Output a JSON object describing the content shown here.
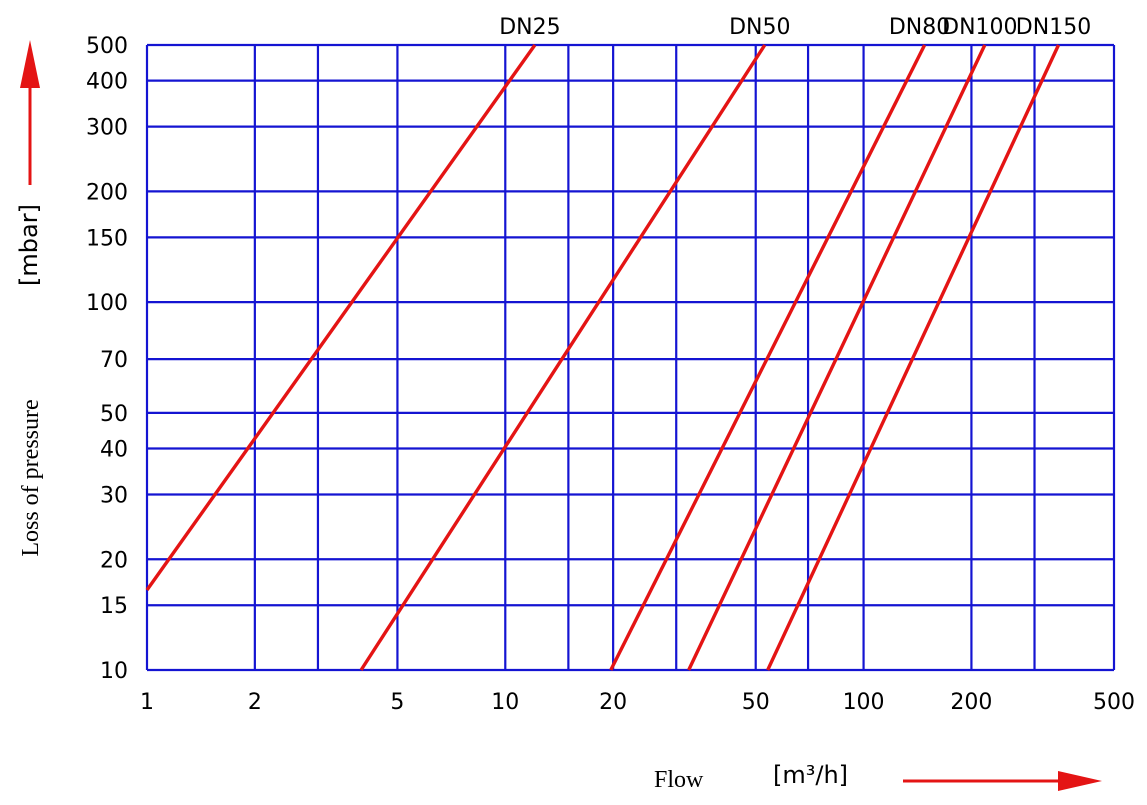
{
  "chart_data": {
    "type": "line",
    "title": "",
    "xlabel": "Flow",
    "xunit": "[m³/h]",
    "ylabel": "Loss of pressure",
    "yunit": "[mbar]",
    "xscale": "log",
    "yscale": "log",
    "xlim": [
      1,
      500
    ],
    "ylim": [
      10,
      500
    ],
    "grid": true,
    "x_ticks": [
      1,
      2,
      5,
      10,
      20,
      50,
      100,
      200,
      500
    ],
    "x_gridlines": [
      1,
      2,
      3,
      5,
      10,
      15,
      20,
      30,
      50,
      70,
      100,
      200,
      300,
      500
    ],
    "y_ticks": [
      10,
      15,
      20,
      30,
      40,
      50,
      70,
      100,
      150,
      200,
      300,
      400,
      500
    ],
    "series": [
      {
        "name": "DN25",
        "x": [
          1,
          12.1
        ],
        "y": [
          16.5,
          500
        ]
      },
      {
        "name": "DN50",
        "x": [
          3.96,
          53
        ],
        "y": [
          10,
          500
        ]
      },
      {
        "name": "DN80",
        "x": [
          19.7,
          148
        ],
        "y": [
          10,
          500
        ]
      },
      {
        "name": "DN100",
        "x": [
          32.5,
          218
        ],
        "y": [
          10,
          500
        ]
      },
      {
        "name": "DN150",
        "x": [
          54,
          350
        ],
        "y": [
          10,
          500
        ]
      }
    ],
    "colors": {
      "grid": "#1414d2",
      "series": "#e41414",
      "arrow": "#e41414"
    }
  }
}
